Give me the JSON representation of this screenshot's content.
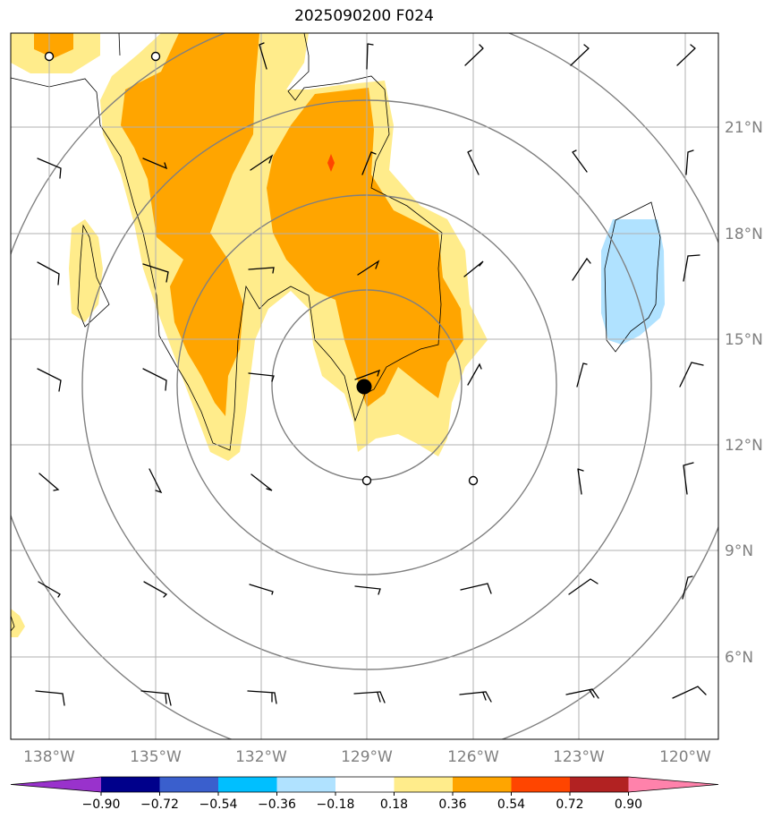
{
  "title": "2025090200 F024",
  "lon_labels": [
    "138°W",
    "135°W",
    "132°W",
    "129°W",
    "126°W",
    "123°W",
    "120°W"
  ],
  "lat_labels": [
    "21°N",
    "18°N",
    "15°N",
    "12°N",
    "9°N",
    "6°N"
  ],
  "colorbar": {
    "labels": [
      "−0.90",
      "−0.72",
      "−0.54",
      "−0.36",
      "−0.18",
      "0.18",
      "0.36",
      "0.54",
      "0.72",
      "0.90"
    ],
    "colors": [
      "#9932cc",
      "#00008b",
      "#3a5fcd",
      "#00bfff",
      "#b0e2ff",
      "#ffffff",
      "#ffec8b",
      "#ffa500",
      "#ff4500",
      "#b22222",
      "#ff82ab"
    ]
  },
  "fill_colors": {
    "light_yellow": "#ffec8b",
    "orange": "#ffa500",
    "red_orange": "#ff4500",
    "light_blue": "#b0e2ff"
  },
  "storm_center": {
    "lon": -129.1,
    "lat": 13.6
  }
}
